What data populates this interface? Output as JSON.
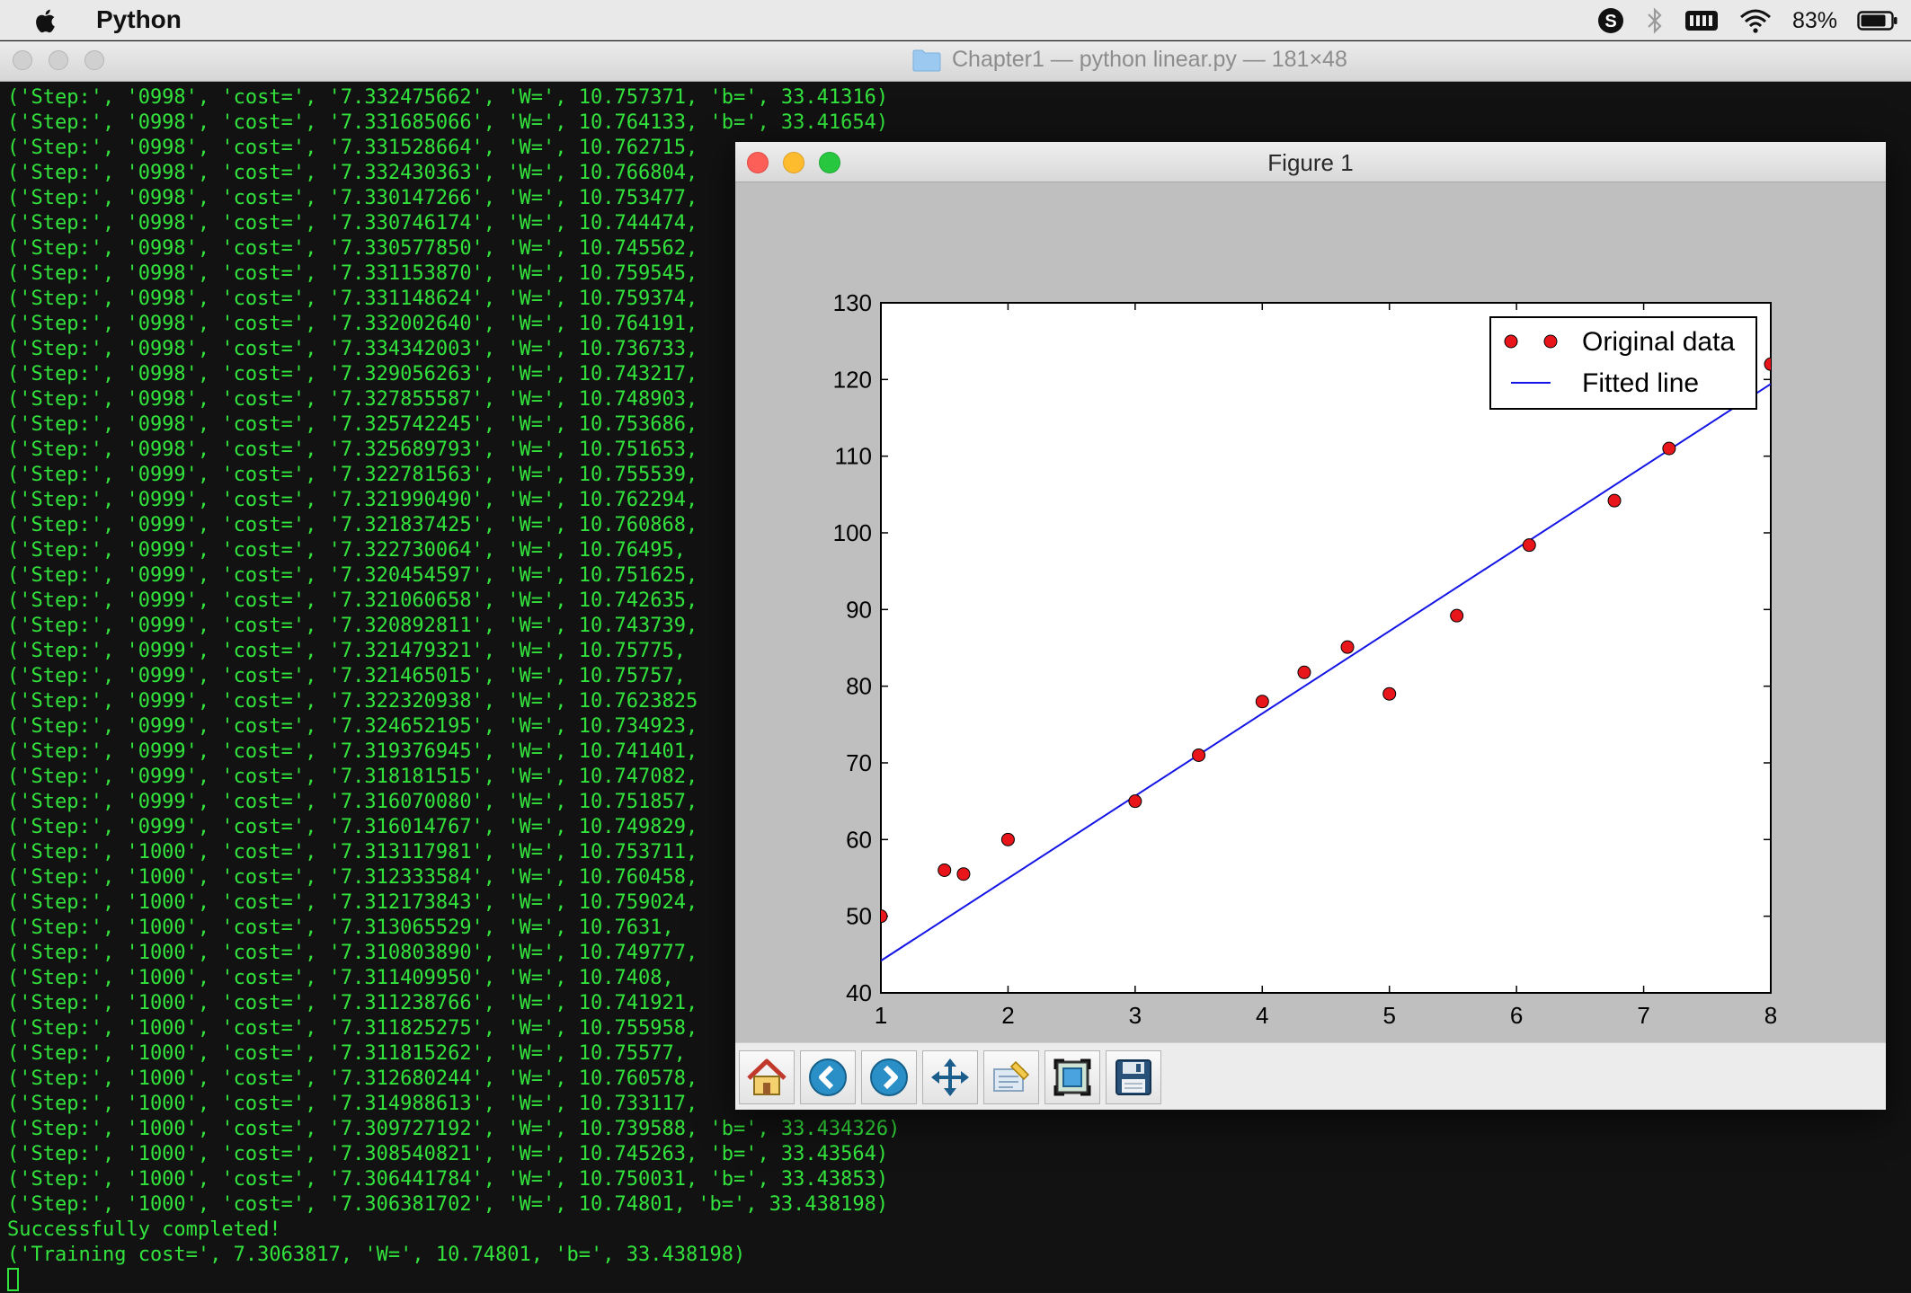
{
  "menubar": {
    "app_name": "Python",
    "battery": "83%",
    "icons": [
      "apple-icon",
      "skype-icon",
      "bluetooth-icon",
      "keyboard-icon",
      "wifi-icon",
      "battery-icon"
    ]
  },
  "terminal": {
    "title": "Chapter1 — python linear.py — 181×48",
    "lines": [
      "('Step:', '0998', 'cost=', '7.332475662', 'W=', 10.757371, 'b=', 33.41316)",
      "('Step:', '0998', 'cost=', '7.331685066', 'W=', 10.764133, 'b=', 33.41654)",
      "('Step:', '0998', 'cost=', '7.331528664', 'W=', 10.762715,",
      "('Step:', '0998', 'cost=', '7.332430363', 'W=', 10.766804,",
      "('Step:', '0998', 'cost=', '7.330147266', 'W=', 10.753477,",
      "('Step:', '0998', 'cost=', '7.330746174', 'W=', 10.744474,",
      "('Step:', '0998', 'cost=', '7.330577850', 'W=', 10.745562,",
      "('Step:', '0998', 'cost=', '7.331153870', 'W=', 10.759545,",
      "('Step:', '0998', 'cost=', '7.331148624', 'W=', 10.759374,",
      "('Step:', '0998', 'cost=', '7.332002640', 'W=', 10.764191,",
      "('Step:', '0998', 'cost=', '7.334342003', 'W=', 10.736733,",
      "('Step:', '0998', 'cost=', '7.329056263', 'W=', 10.743217,",
      "('Step:', '0998', 'cost=', '7.327855587', 'W=', 10.748903,",
      "('Step:', '0998', 'cost=', '7.325742245', 'W=', 10.753686,",
      "('Step:', '0998', 'cost=', '7.325689793', 'W=', 10.751653,",
      "('Step:', '0999', 'cost=', '7.322781563', 'W=', 10.755539,",
      "('Step:', '0999', 'cost=', '7.321990490', 'W=', 10.762294,",
      "('Step:', '0999', 'cost=', '7.321837425', 'W=', 10.760868,",
      "('Step:', '0999', 'cost=', '7.322730064', 'W=', 10.76495,",
      "('Step:', '0999', 'cost=', '7.320454597', 'W=', 10.751625,",
      "('Step:', '0999', 'cost=', '7.321060658', 'W=', 10.742635,",
      "('Step:', '0999', 'cost=', '7.320892811', 'W=', 10.743739,",
      "('Step:', '0999', 'cost=', '7.321479321', 'W=', 10.75775,",
      "('Step:', '0999', 'cost=', '7.321465015', 'W=', 10.75757,",
      "('Step:', '0999', 'cost=', '7.322320938', 'W=', 10.7623825",
      "('Step:', '0999', 'cost=', '7.324652195', 'W=', 10.734923,",
      "('Step:', '0999', 'cost=', '7.319376945', 'W=', 10.741401,",
      "('Step:', '0999', 'cost=', '7.318181515', 'W=', 10.747082,",
      "('Step:', '0999', 'cost=', '7.316070080', 'W=', 10.751857,",
      "('Step:', '0999', 'cost=', '7.316014767', 'W=', 10.749829,",
      "('Step:', '1000', 'cost=', '7.313117981', 'W=', 10.753711,",
      "('Step:', '1000', 'cost=', '7.312333584', 'W=', 10.760458,",
      "('Step:', '1000', 'cost=', '7.312173843', 'W=', 10.759024,",
      "('Step:', '1000', 'cost=', '7.313065529', 'W=', 10.7631,",
      "('Step:', '1000', 'cost=', '7.310803890', 'W=', 10.749777,",
      "('Step:', '1000', 'cost=', '7.311409950', 'W=', 10.7408,",
      "('Step:', '1000', 'cost=', '7.311238766', 'W=', 10.741921,",
      "('Step:', '1000', 'cost=', '7.311825275', 'W=', 10.755958,",
      "('Step:', '1000', 'cost=', '7.311815262', 'W=', 10.75577,",
      "('Step:', '1000', 'cost=', '7.312680244', 'W=', 10.760578,",
      "('Step:', '1000', 'cost=', '7.314988613', 'W=', 10.733117,",
      "('Step:', '1000', 'cost=', '7.309727192', 'W=', 10.739588, 'b=', 33.434326)",
      "('Step:', '1000', 'cost=', '7.308540821', 'W=', 10.745263, 'b=', 33.43564)",
      "('Step:', '1000', 'cost=', '7.306441784', 'W=', 10.750031, 'b=', 33.43853)",
      "('Step:', '1000', 'cost=', '7.306381702', 'W=', 10.74801, 'b=', 33.438198)",
      "Successfully completed!",
      "('Training cost=', 7.3063817, 'W=', 10.74801, 'b=', 33.438198)"
    ]
  },
  "figure": {
    "title": "Figure 1",
    "toolbar": [
      "home-icon",
      "back-icon",
      "forward-icon",
      "pan-icon",
      "configure-subplots-icon",
      "zoom-rect-icon",
      "save-icon"
    ]
  },
  "chart_data": {
    "type": "scatter",
    "title": "",
    "xlabel": "",
    "ylabel": "",
    "xlim": [
      1,
      8
    ],
    "ylim": [
      40,
      130
    ],
    "xticks": [
      1,
      2,
      3,
      4,
      5,
      6,
      7,
      8
    ],
    "yticks": [
      40,
      50,
      60,
      70,
      80,
      90,
      100,
      110,
      120,
      130
    ],
    "grid": false,
    "legend_position": "top-right",
    "series": [
      {
        "name": "Original data",
        "type": "scatter",
        "color": "#e8151b",
        "x": [
          1.0,
          1.5,
          1.65,
          2.0,
          3.0,
          3.5,
          4.0,
          4.33,
          4.67,
          5.0,
          5.53,
          6.1,
          6.77,
          7.2,
          8.0
        ],
        "y": [
          50.0,
          56.0,
          55.5,
          60.0,
          65.0,
          71.0,
          78.0,
          81.8,
          85.1,
          79.0,
          89.2,
          98.4,
          104.2,
          111.0,
          122.0
        ]
      },
      {
        "name": "Fitted line",
        "type": "line",
        "color": "#1515e6",
        "x": [
          1,
          8
        ],
        "y": [
          44.19,
          119.42
        ]
      }
    ]
  }
}
